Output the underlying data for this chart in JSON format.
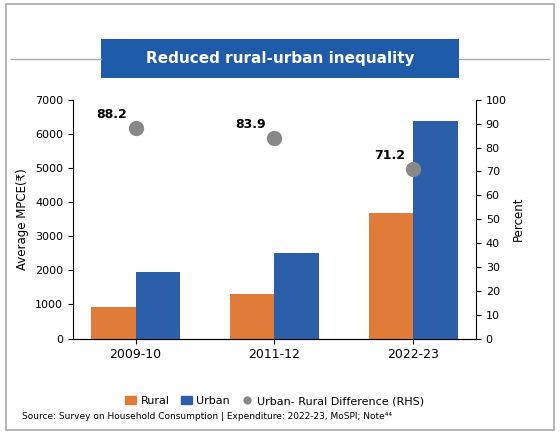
{
  "title": "Reduced rural-urban inequality",
  "title_bg_color": "#1e5ba8",
  "title_text_color": "#ffffff",
  "categories": [
    "2009-10",
    "2011-12",
    "2022-23"
  ],
  "rural_values": [
    925,
    1300,
    3680
  ],
  "urban_values": [
    1950,
    2520,
    6380
  ],
  "rhs_values": [
    88.2,
    83.9,
    71.2
  ],
  "rhs_labels": [
    "88.2",
    "83.9",
    "71.2"
  ],
  "rural_color": "#e07b39",
  "urban_color": "#2b5faa",
  "dot_color": "#888888",
  "ylabel_left": "Average MPCE(₹)",
  "ylabel_right": "Percent",
  "ylim_left": [
    0,
    7000
  ],
  "ylim_right": [
    0,
    100
  ],
  "yticks_left": [
    0,
    1000,
    2000,
    3000,
    4000,
    5000,
    6000,
    7000
  ],
  "yticks_right": [
    0,
    10,
    20,
    30,
    40,
    50,
    60,
    70,
    80,
    90,
    100
  ],
  "legend_labels": [
    "Rural",
    "Urban",
    "Urban- Rural Difference (RHS)"
  ],
  "source_text": "Source: Survey on Household Consumption | Expenditure: 2022-23, MoSPI; Note⁴⁴",
  "bar_width": 0.32,
  "background_color": "#ffffff",
  "outer_border_color": "#aaaaaa"
}
